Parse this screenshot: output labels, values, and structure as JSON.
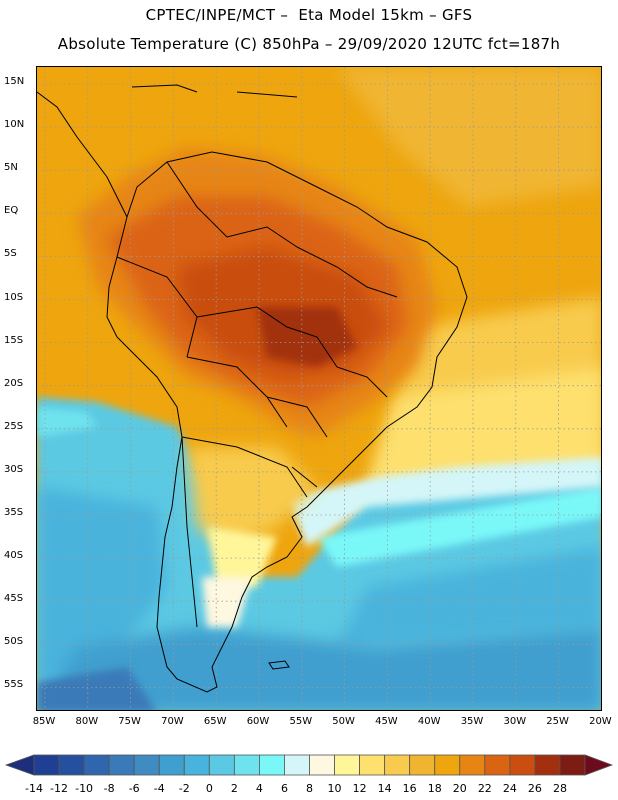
{
  "header": {
    "line1": "CPTEC/INPE/MCT –  Eta Model 15km – GFS",
    "line2": "Absolute Temperature (C) 850hPa – 29/09/2020 12UTC fct=187h"
  },
  "map": {
    "lat_labels": [
      "15N",
      "10N",
      "5N",
      "EQ",
      "5S",
      "10S",
      "15S",
      "20S",
      "25S",
      "30S",
      "35S",
      "40S",
      "45S",
      "50S",
      "55S"
    ],
    "lon_labels": [
      "85W",
      "80W",
      "75W",
      "70W",
      "65W",
      "60W",
      "55W",
      "50W",
      "45W",
      "40W",
      "35W",
      "30W",
      "25W",
      "20W"
    ],
    "lon_range": [
      -85,
      -20
    ],
    "lat_range": [
      -57,
      17
    ],
    "border_color": "#000000",
    "grid_color": "#9a9a9a"
  },
  "colorbar": {
    "labels": [
      "-14",
      "-12",
      "-10",
      "-8",
      "-6",
      "-4",
      "-2",
      "0",
      "2",
      "4",
      "6",
      "8",
      "10",
      "12",
      "14",
      "16",
      "18",
      "20",
      "22",
      "24",
      "26",
      "28"
    ],
    "colors": [
      "#1f3f95",
      "#24509f",
      "#2f66ad",
      "#3a7ab8",
      "#3f8cc2",
      "#3f9fcf",
      "#48b3dc",
      "#5bc9e3",
      "#6ee3ee",
      "#7af8f8",
      "#d4f6f8",
      "#fff8e0",
      "#fff69a",
      "#fde06e",
      "#f8cb4e",
      "#f0b530",
      "#eea50e",
      "#e78514",
      "#db6412",
      "#c94e10",
      "#a2300e",
      "#7d1c12"
    ],
    "low_end_color": "#1d2e7d",
    "high_end_color": "#6d0a1e"
  }
}
